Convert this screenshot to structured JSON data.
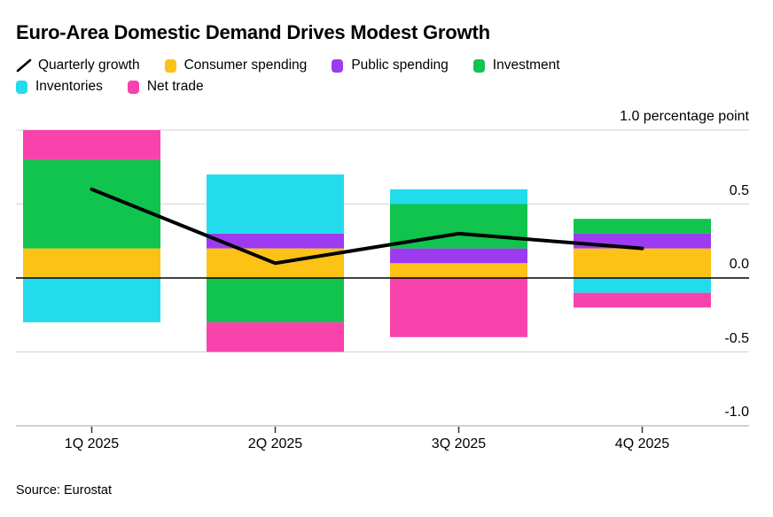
{
  "title": "Euro-Area Domestic Demand Drives Modest Growth",
  "source": "Source: Eurostat",
  "legend": {
    "items": [
      {
        "label": "Quarterly growth",
        "swatch": "line",
        "color": "#000000"
      },
      {
        "label": "Consumer spending",
        "swatch": "square",
        "color": "#fcc216"
      },
      {
        "label": "Public spending",
        "swatch": "square",
        "color": "#9d3bf0"
      },
      {
        "label": "Investment",
        "swatch": "square",
        "color": "#10c44e"
      },
      {
        "label": "Inventories",
        "swatch": "square",
        "color": "#22dced"
      },
      {
        "label": "Net trade",
        "swatch": "square",
        "color": "#f743ab"
      }
    ]
  },
  "chart_data": {
    "type": "bar",
    "subtype": "stacked-bar-with-line",
    "categories": [
      "1Q 2025",
      "2Q 2025",
      "3Q 2025",
      "4Q 2025"
    ],
    "series": [
      {
        "name": "Consumer spending",
        "color": "#fcc216",
        "values": [
          0.2,
          0.2,
          0.1,
          0.2
        ]
      },
      {
        "name": "Public spending",
        "color": "#9d3bf0",
        "values": [
          0.0,
          0.1,
          0.1,
          0.1
        ]
      },
      {
        "name": "Investment",
        "color": "#10c44e",
        "values": [
          0.6,
          -0.3,
          0.3,
          0.1
        ]
      },
      {
        "name": "Inventories",
        "color": "#22dced",
        "values": [
          -0.3,
          0.4,
          0.1,
          -0.1
        ]
      },
      {
        "name": "Net trade",
        "color": "#f743ab",
        "values": [
          0.2,
          -0.2,
          -0.4,
          -0.1
        ]
      }
    ],
    "line_series": {
      "name": "Quarterly growth",
      "color": "#000000",
      "values": [
        0.6,
        0.1,
        0.3,
        0.2
      ]
    },
    "ylim": [
      -1.0,
      1.0
    ],
    "y_ticks": [
      {
        "value": 1.0,
        "label": "1.0 percentage point"
      },
      {
        "value": 0.5,
        "label": "0.5"
      },
      {
        "value": 0.0,
        "label": "0.0"
      },
      {
        "value": -0.5,
        "label": "-0.5"
      },
      {
        "value": -1.0,
        "label": "-1.0"
      }
    ],
    "grid": true,
    "legend_position": "top",
    "colors": {
      "gridline": "#d9d9d9",
      "zero_line": "#000000",
      "axis_line": "#b3b3b3",
      "tick_mark": "#333333"
    }
  }
}
